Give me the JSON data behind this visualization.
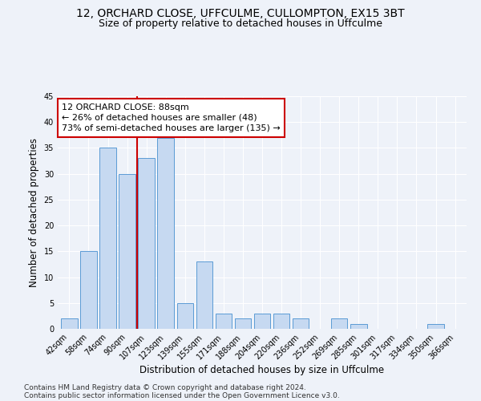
{
  "title_line1": "12, ORCHARD CLOSE, UFFCULME, CULLOMPTON, EX15 3BT",
  "title_line2": "Size of property relative to detached houses in Uffculme",
  "xlabel": "Distribution of detached houses by size in Uffculme",
  "ylabel": "Number of detached properties",
  "categories": [
    "42sqm",
    "58sqm",
    "74sqm",
    "90sqm",
    "107sqm",
    "123sqm",
    "139sqm",
    "155sqm",
    "171sqm",
    "188sqm",
    "204sqm",
    "220sqm",
    "236sqm",
    "252sqm",
    "269sqm",
    "285sqm",
    "301sqm",
    "317sqm",
    "334sqm",
    "350sqm",
    "366sqm"
  ],
  "values": [
    2,
    15,
    35,
    30,
    33,
    37,
    5,
    13,
    3,
    2,
    3,
    3,
    2,
    0,
    2,
    1,
    0,
    0,
    0,
    1,
    0
  ],
  "bar_color": "#c6d9f1",
  "bar_edge_color": "#5b9bd5",
  "property_line_x": 3.5,
  "annotation_text": "12 ORCHARD CLOSE: 88sqm\n← 26% of detached houses are smaller (48)\n73% of semi-detached houses are larger (135) →",
  "annotation_box_color": "#ffffff",
  "annotation_box_edge_color": "#cc0000",
  "vline_color": "#cc0000",
  "ylim": [
    0,
    45
  ],
  "yticks": [
    0,
    5,
    10,
    15,
    20,
    25,
    30,
    35,
    40,
    45
  ],
  "footer_line1": "Contains HM Land Registry data © Crown copyright and database right 2024.",
  "footer_line2": "Contains public sector information licensed under the Open Government Licence v3.0.",
  "background_color": "#eef2f9",
  "title_fontsize": 10,
  "subtitle_fontsize": 9,
  "axis_label_fontsize": 8.5,
  "tick_fontsize": 7,
  "footer_fontsize": 6.5,
  "annotation_fontsize": 8
}
